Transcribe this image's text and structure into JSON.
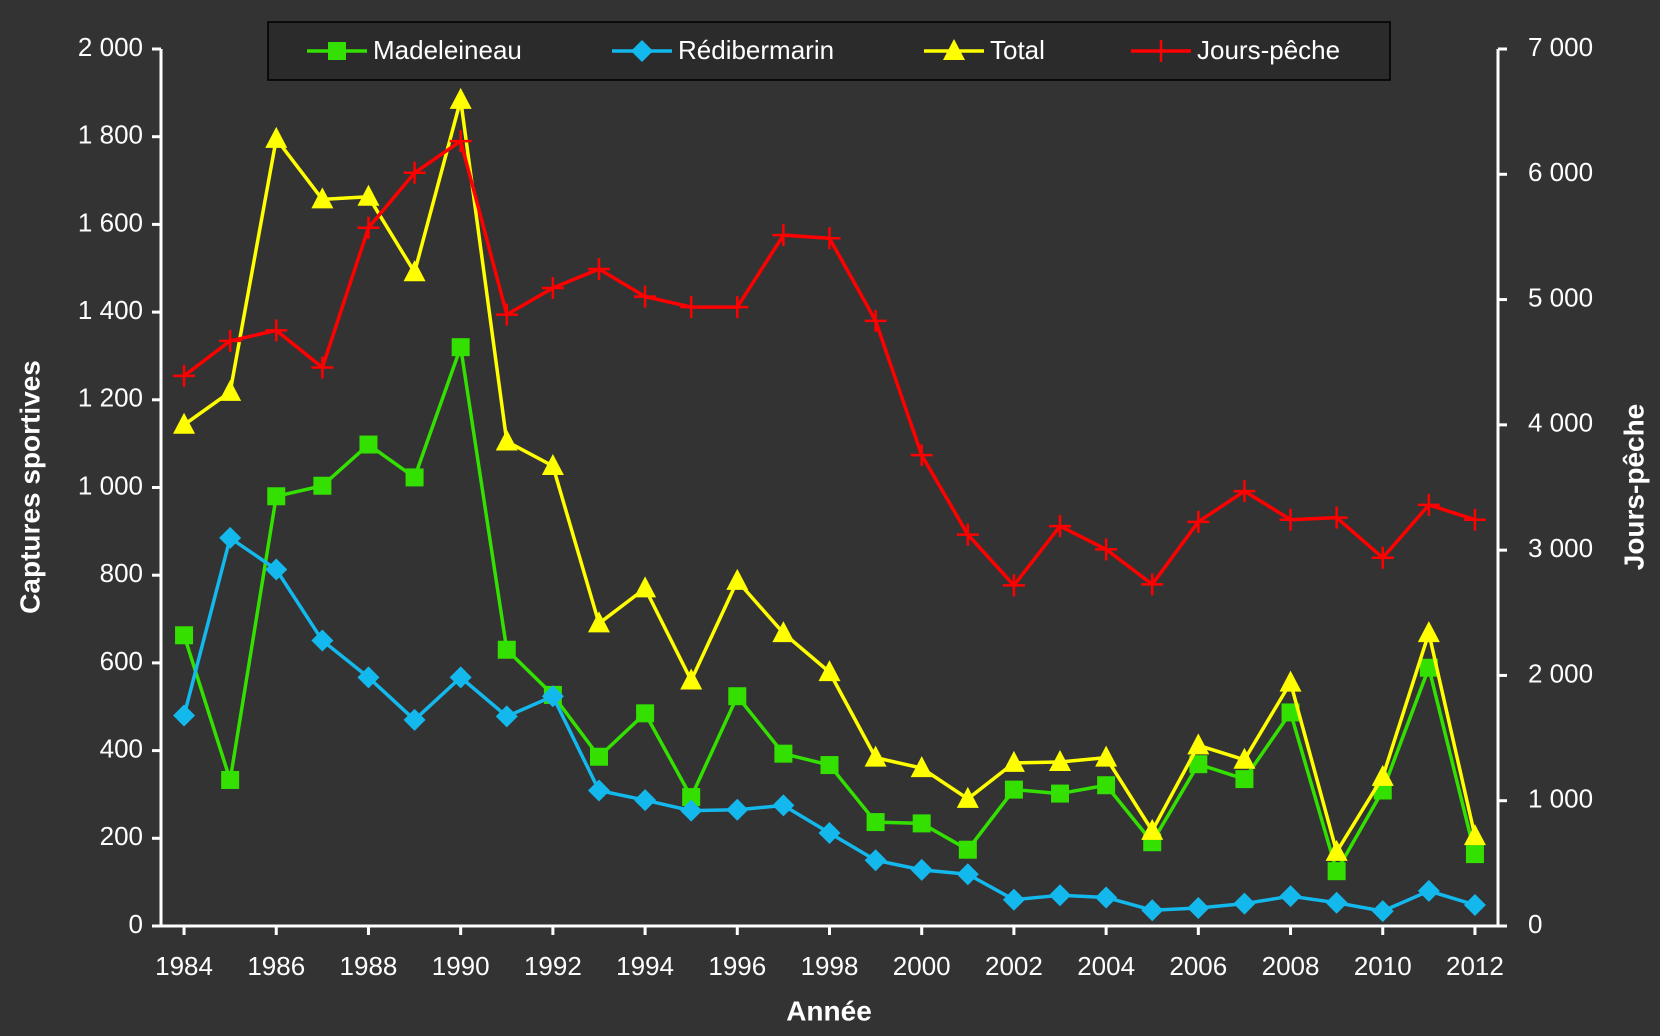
{
  "chart_data": {
    "type": "line",
    "x_label": "Année",
    "y_label": "Captures sportives",
    "y2_label": "Jours-pêche",
    "x": [
      1984,
      1985,
      1986,
      1987,
      1988,
      1989,
      1990,
      1991,
      1992,
      1993,
      1994,
      1995,
      1996,
      1997,
      1998,
      1999,
      2000,
      2001,
      2002,
      2003,
      2004,
      2005,
      2006,
      2007,
      2008,
      2009,
      2010,
      2011,
      2012
    ],
    "xlim": [
      1983.5,
      2012.5
    ],
    "xticks": [
      1984,
      1986,
      1988,
      1990,
      1992,
      1994,
      1996,
      1998,
      2000,
      2002,
      2004,
      2006,
      2008,
      2010,
      2012
    ],
    "ylim": [
      0,
      2000
    ],
    "yticks": [
      0,
      200,
      400,
      600,
      800,
      {
        "value": 1000,
        "label": "1 000"
      },
      {
        "value": 1200,
        "label": "1 200"
      },
      {
        "value": 1400,
        "label": "1 400"
      },
      {
        "value": 1600,
        "label": "1 600"
      },
      {
        "value": 1800,
        "label": "1 800"
      },
      {
        "value": 2000,
        "label": "2 000"
      }
    ],
    "y2lim": [
      0,
      7000
    ],
    "y2ticks": [
      0,
      {
        "value": 1000,
        "label": "1 000"
      },
      {
        "value": 2000,
        "label": "2 000"
      },
      {
        "value": 3000,
        "label": "3 000"
      },
      {
        "value": 4000,
        "label": "4 000"
      },
      {
        "value": 5000,
        "label": "5 000"
      },
      {
        "value": 6000,
        "label": "6 000"
      },
      {
        "value": 7000,
        "label": "7 000"
      }
    ],
    "legend": "top",
    "series": [
      {
        "name": "Madeleineau",
        "color": "#33e000",
        "marker": "square",
        "values": [
          663,
          333,
          980,
          1004,
          1098,
          1023,
          1320,
          630,
          527,
          386,
          485,
          294,
          524,
          393,
          367,
          237,
          234,
          174,
          311,
          302,
          321,
          191,
          369,
          335,
          487,
          125,
          309,
          589,
          164
        ]
      },
      {
        "name": "Rédibermarin",
        "color": "#13b8ec",
        "marker": "diamond",
        "values": [
          480,
          885,
          813,
          651,
          567,
          470,
          567,
          478,
          524,
          309,
          287,
          263,
          265,
          275,
          212,
          150,
          128,
          118,
          60,
          70,
          65,
          36,
          41,
          51,
          68,
          53,
          34,
          80,
          48
        ]
      },
      {
        "name": "Total",
        "color": "#ffff00",
        "marker": "triangle",
        "values": [
          1143,
          1218,
          1795,
          1657,
          1663,
          1491,
          1884,
          1105,
          1049,
          690,
          770,
          560,
          787,
          668,
          579,
          384,
          360,
          290,
          372,
          374,
          384,
          217,
          412,
          379,
          555,
          169,
          340,
          668,
          205
        ]
      },
      {
        "name": "Jours-pêche",
        "color": "#ff0000",
        "marker": "plus",
        "axis": "y2",
        "values": [
          4391,
          4670,
          4754,
          4458,
          5573,
          6012,
          6265,
          4880,
          5092,
          5244,
          5024,
          4940,
          4940,
          5514,
          5489,
          4830,
          3758,
          3124,
          2719,
          3192,
          3006,
          2727,
          3226,
          3471,
          3243,
          3260,
          2939,
          3361,
          3243
        ]
      }
    ]
  }
}
